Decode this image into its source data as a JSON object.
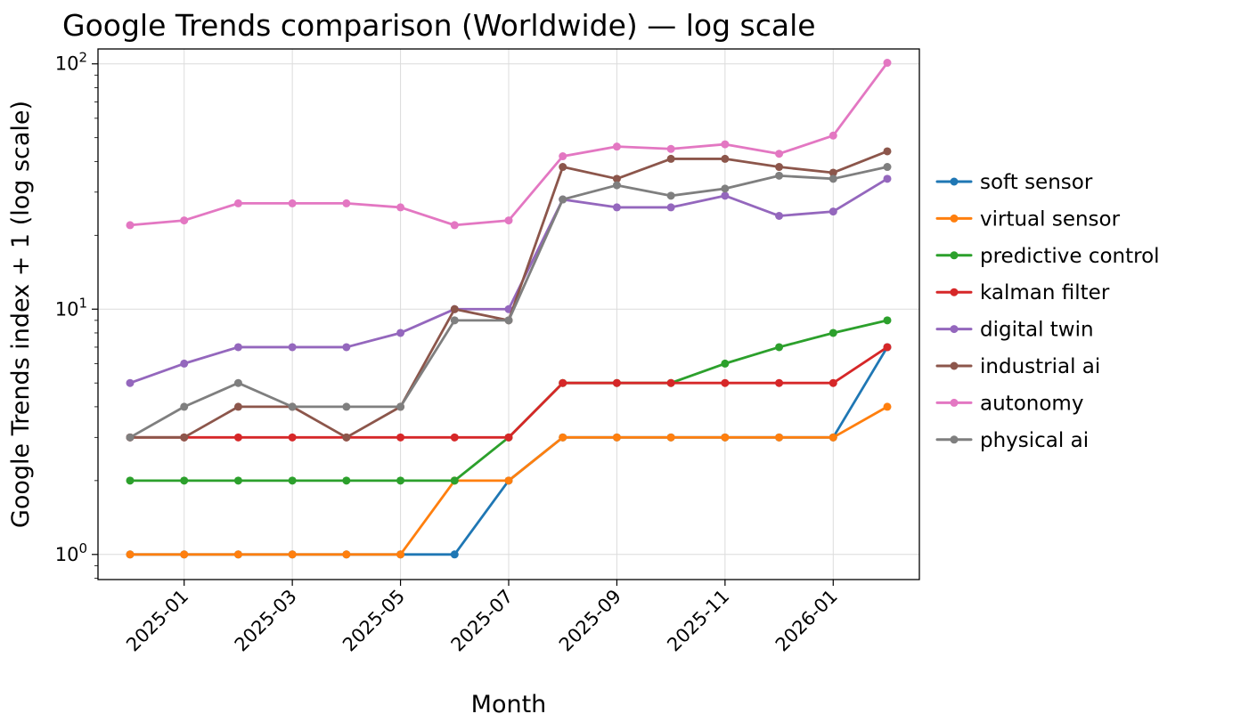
{
  "chart_data": {
    "type": "line",
    "title": "Google Trends comparison (Worldwide) — log scale",
    "xlabel": "Month",
    "ylabel": "Google Trends index + 1 (log scale)",
    "yscale": "log",
    "ylim": [
      0.79,
      115
    ],
    "grid": true,
    "legend_position": "right",
    "marker": "circle",
    "x": [
      "2024-12",
      "2025-01",
      "2025-02",
      "2025-03",
      "2025-04",
      "2025-05",
      "2025-06",
      "2025-07",
      "2025-08",
      "2025-09",
      "2025-10",
      "2025-11",
      "2025-12",
      "2026-01",
      "2026-02"
    ],
    "x_tick_indices": [
      1,
      3,
      5,
      7,
      9,
      11,
      13
    ],
    "x_tick_labels": [
      "2025-01",
      "2025-03",
      "2025-05",
      "2025-07",
      "2025-09",
      "2025-11",
      "2026-01"
    ],
    "y_ticks": [
      1,
      10,
      100
    ],
    "y_tick_labels": [
      "10^0",
      "10^1",
      "10^2"
    ],
    "series": [
      {
        "name": "soft sensor",
        "color": "#1f77b4",
        "values": [
          1,
          1,
          1,
          1,
          1,
          1,
          1,
          2,
          3,
          3,
          3,
          3,
          3,
          3,
          7
        ]
      },
      {
        "name": "virtual sensor",
        "color": "#ff7f0e",
        "values": [
          1,
          1,
          1,
          1,
          1,
          1,
          2,
          2,
          3,
          3,
          3,
          3,
          3,
          3,
          4
        ]
      },
      {
        "name": "predictive control",
        "color": "#2ca02c",
        "values": [
          2,
          2,
          2,
          2,
          2,
          2,
          2,
          3,
          5,
          5,
          5,
          6,
          7,
          8,
          9
        ]
      },
      {
        "name": "kalman filter",
        "color": "#d62728",
        "values": [
          3,
          3,
          3,
          3,
          3,
          3,
          3,
          3,
          5,
          5,
          5,
          5,
          5,
          5,
          7
        ]
      },
      {
        "name": "digital twin",
        "color": "#9467bd",
        "values": [
          5,
          6,
          7,
          7,
          7,
          8,
          10,
          10,
          28,
          26,
          26,
          29,
          24,
          25,
          34
        ]
      },
      {
        "name": "industrial ai",
        "color": "#8c564b",
        "values": [
          3,
          3,
          4,
          4,
          3,
          4,
          10,
          9,
          38,
          34,
          41,
          41,
          38,
          36,
          44
        ]
      },
      {
        "name": "autonomy",
        "color": "#e377c2",
        "values": [
          22,
          23,
          27,
          27,
          27,
          26,
          22,
          23,
          42,
          46,
          45,
          47,
          43,
          51,
          101
        ]
      },
      {
        "name": "physical ai",
        "color": "#7f7f7f",
        "values": [
          3,
          4,
          5,
          4,
          4,
          4,
          9,
          9,
          28,
          32,
          29,
          31,
          35,
          34,
          38
        ]
      }
    ]
  }
}
